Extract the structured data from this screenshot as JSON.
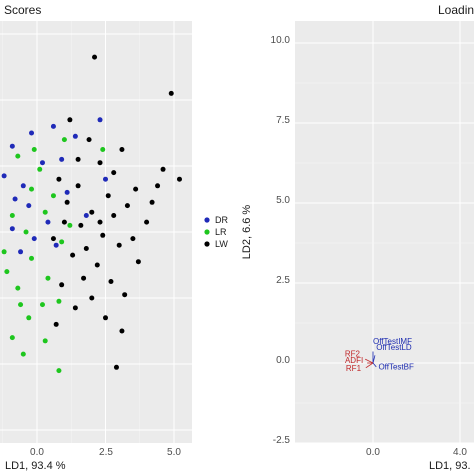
{
  "chart_data": [
    {
      "type": "scatter",
      "title": "Scores",
      "xlabel": "LD1, 93.4 %",
      "xlim": [
        -2.5,
        5.5
      ],
      "ylim": [
        -6.0,
        6.0
      ],
      "xticks": [
        "0.0",
        "2.5",
        "5.0"
      ],
      "grid": true,
      "legend_position": "right",
      "series": [
        {
          "name": "DR",
          "color": "#1f2ab8",
          "points": [
            [
              2.3,
              3.4
            ],
            [
              0.6,
              3.2
            ],
            [
              -0.2,
              3.0
            ],
            [
              -1.6,
              2.4
            ],
            [
              -0.9,
              2.6
            ],
            [
              1.4,
              2.9
            ],
            [
              0.2,
              2.1
            ],
            [
              -1.2,
              1.7
            ],
            [
              0.9,
              2.2
            ],
            [
              -0.5,
              1.4
            ],
            [
              -2.0,
              1.9
            ],
            [
              -0.3,
              0.8
            ],
            [
              1.1,
              1.2
            ],
            [
              -1.5,
              0.7
            ],
            [
              0.4,
              0.3
            ],
            [
              -0.9,
              0.1
            ],
            [
              -0.1,
              -0.2
            ],
            [
              -1.9,
              0.4
            ],
            [
              1.8,
              0.5
            ],
            [
              -0.6,
              -0.6
            ],
            [
              0.7,
              -0.4
            ],
            [
              -1.3,
              -0.9
            ],
            [
              2.5,
              1.6
            ],
            [
              -0.8,
              1.0
            ]
          ]
        },
        {
          "name": "LR",
          "color": "#1ec61e",
          "points": [
            [
              1.0,
              2.8
            ],
            [
              2.4,
              2.5
            ],
            [
              -0.7,
              2.3
            ],
            [
              0.1,
              1.9
            ],
            [
              -1.4,
              1.5
            ],
            [
              -0.2,
              1.3
            ],
            [
              0.6,
              1.1
            ],
            [
              -1.8,
              0.9
            ],
            [
              -0.9,
              0.5
            ],
            [
              0.3,
              0.6
            ],
            [
              -0.4,
              0.0
            ],
            [
              -1.6,
              -0.2
            ],
            [
              0.9,
              -0.3
            ],
            [
              -0.2,
              -0.8
            ],
            [
              -1.1,
              -1.2
            ],
            [
              0.4,
              -1.4
            ],
            [
              -2.0,
              -1.0
            ],
            [
              -0.7,
              -1.7
            ],
            [
              0.2,
              -2.2
            ],
            [
              -1.5,
              -2.0
            ],
            [
              -0.3,
              -2.6
            ],
            [
              0.8,
              -2.1
            ],
            [
              -1.9,
              -2.8
            ],
            [
              -0.9,
              -3.2
            ],
            [
              -2.2,
              -3.4
            ],
            [
              -0.5,
              -3.7
            ],
            [
              0.3,
              -3.3
            ],
            [
              0.8,
              -4.2
            ],
            [
              -1.2,
              -0.6
            ],
            [
              -0.1,
              2.5
            ],
            [
              -2.1,
              1.2
            ],
            [
              1.2,
              0.2
            ],
            [
              -0.6,
              -2.2
            ],
            [
              -1.8,
              -1.5
            ]
          ]
        },
        {
          "name": "LW",
          "color": "#000000",
          "points": [
            [
              2.1,
              5.3
            ],
            [
              4.9,
              4.2
            ],
            [
              4.6,
              1.9
            ],
            [
              5.2,
              1.6
            ],
            [
              4.4,
              1.4
            ],
            [
              1.2,
              3.4
            ],
            [
              1.9,
              2.8
            ],
            [
              2.3,
              2.1
            ],
            [
              1.5,
              2.2
            ],
            [
              2.8,
              1.8
            ],
            [
              0.8,
              1.6
            ],
            [
              3.1,
              2.5
            ],
            [
              3.6,
              1.3
            ],
            [
              2.6,
              1.1
            ],
            [
              1.1,
              0.9
            ],
            [
              2.0,
              0.6
            ],
            [
              3.3,
              0.8
            ],
            [
              1.6,
              0.2
            ],
            [
              2.4,
              -0.1
            ],
            [
              0.6,
              -0.2
            ],
            [
              3.0,
              -0.4
            ],
            [
              1.3,
              -0.7
            ],
            [
              2.2,
              -1.0
            ],
            [
              3.5,
              -0.2
            ],
            [
              1.7,
              -1.4
            ],
            [
              2.7,
              -1.5
            ],
            [
              0.9,
              -1.6
            ],
            [
              2.0,
              -2.0
            ],
            [
              3.2,
              -1.9
            ],
            [
              1.4,
              -2.3
            ],
            [
              2.5,
              -2.6
            ],
            [
              0.7,
              -2.8
            ],
            [
              3.1,
              -3.0
            ],
            [
              2.9,
              -4.1
            ],
            [
              4.0,
              0.3
            ],
            [
              2.3,
              0.3
            ],
            [
              1.8,
              -0.5
            ],
            [
              3.7,
              -0.9
            ],
            [
              1.0,
              0.3
            ],
            [
              2.8,
              0.5
            ],
            [
              1.5,
              1.4
            ],
            [
              4.2,
              0.9
            ]
          ]
        }
      ]
    },
    {
      "type": "scatter",
      "title": "Loadin",
      "xlabel": "LD1, 93.",
      "ylabel": "LD2, 6.6 %",
      "xlim": [
        -1.0,
        5.0
      ],
      "ylim": [
        -2.5,
        10.6
      ],
      "xticks": [
        "0.0",
        "4.0"
      ],
      "yticks": [
        "-2.5",
        "0.0",
        "2.5",
        "5.0",
        "7.5",
        "10.0"
      ],
      "grid": true,
      "labels": [
        {
          "text": "OffTestIMF",
          "x": 0.0,
          "y": 0.6,
          "color": "#1c2bb0"
        },
        {
          "text": "OffTestLD",
          "x": 0.15,
          "y": 0.4,
          "color": "#1c2bb0"
        },
        {
          "text": "RF2",
          "x": -0.6,
          "y": 0.2,
          "color": "#c0282a"
        },
        {
          "text": "ADFI",
          "x": -0.45,
          "y": 0.0,
          "color": "#c0282a"
        },
        {
          "text": "RF1",
          "x": -0.55,
          "y": -0.25,
          "color": "#c0282a"
        },
        {
          "text": "OffTestBF",
          "x": 0.25,
          "y": -0.2,
          "color": "#1c2bb0"
        }
      ]
    }
  ]
}
